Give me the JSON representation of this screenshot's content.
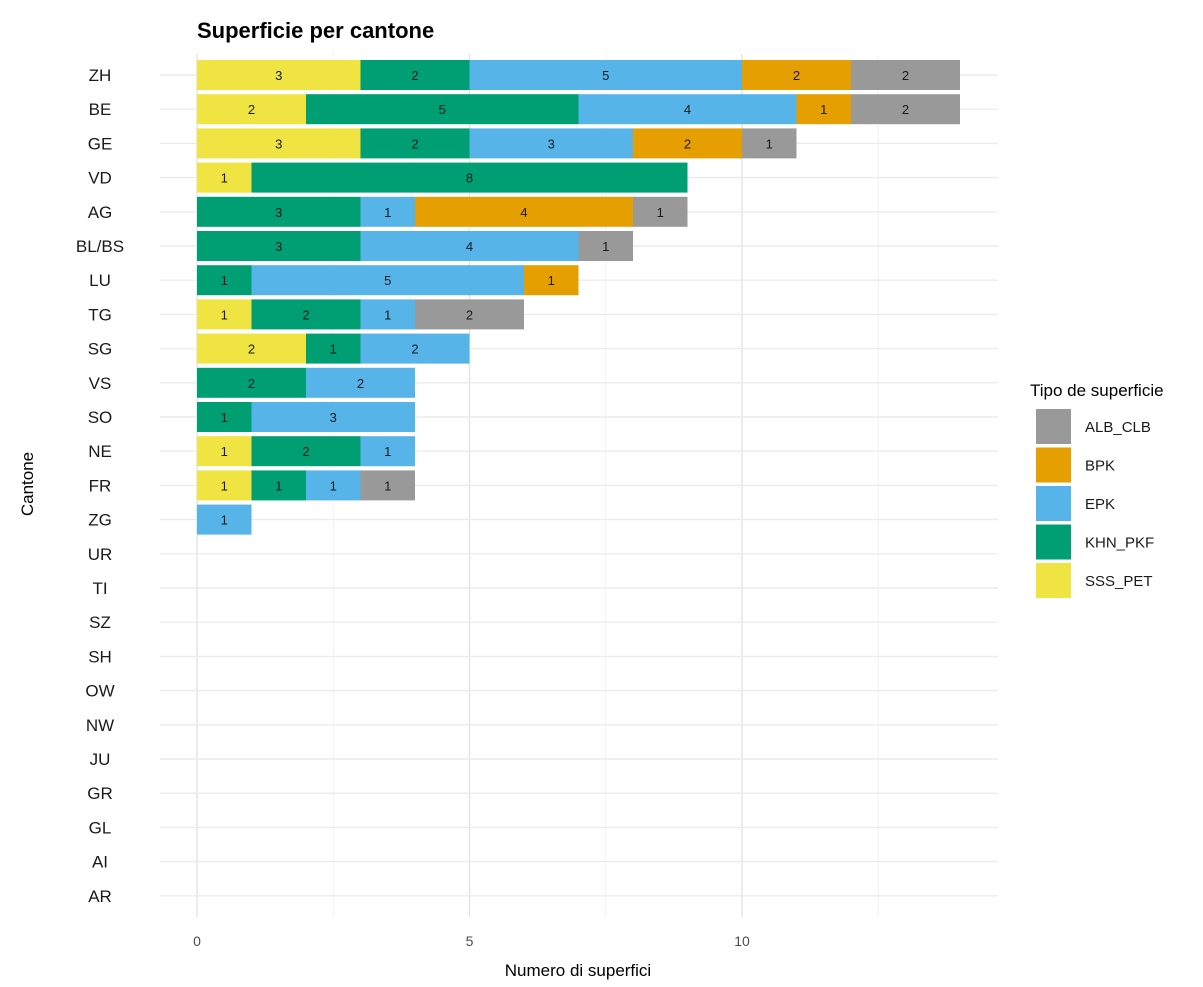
{
  "chart_data": {
    "type": "bar",
    "orientation": "horizontal",
    "stacked": true,
    "title": "Superficie per cantone",
    "xlabel": "Numero di superfici",
    "ylabel": "Cantone",
    "xlim": [
      0,
      14.7
    ],
    "x_ticks": [
      0,
      5,
      10
    ],
    "grid": true,
    "legend": {
      "title": "Tipo de superficie",
      "placement": "right",
      "entries": [
        "ALB_CLB",
        "BPK",
        "EPK",
        "KHN_PKF",
        "SSS_PET"
      ]
    },
    "categories": [
      "ZH",
      "BE",
      "GE",
      "VD",
      "AG",
      "BL/BS",
      "LU",
      "TG",
      "SG",
      "VS",
      "SO",
      "NE",
      "FR",
      "ZG",
      "UR",
      "TI",
      "SZ",
      "SH",
      "OW",
      "NW",
      "JU",
      "GR",
      "GL",
      "AI",
      "AR"
    ],
    "stack_order": [
      "SSS_PET",
      "KHN_PKF",
      "EPK",
      "BPK",
      "ALB_CLB"
    ],
    "series": [
      {
        "name": "SSS_PET",
        "color": "#F0E442",
        "values": [
          3,
          2,
          3,
          1,
          0,
          0,
          0,
          1,
          2,
          0,
          0,
          1,
          1,
          0,
          0,
          0,
          0,
          0,
          0,
          0,
          0,
          0,
          0,
          0,
          0
        ]
      },
      {
        "name": "KHN_PKF",
        "color": "#009E73",
        "values": [
          2,
          5,
          2,
          8,
          3,
          3,
          1,
          2,
          1,
          2,
          1,
          2,
          1,
          0,
          0,
          0,
          0,
          0,
          0,
          0,
          0,
          0,
          0,
          0,
          0
        ]
      },
      {
        "name": "EPK",
        "color": "#56B4E9",
        "values": [
          5,
          4,
          3,
          0,
          1,
          4,
          5,
          1,
          2,
          2,
          3,
          1,
          1,
          1,
          0,
          0,
          0,
          0,
          0,
          0,
          0,
          0,
          0,
          0,
          0
        ]
      },
      {
        "name": "BPK",
        "color": "#E69F00",
        "values": [
          2,
          1,
          2,
          0,
          4,
          0,
          1,
          0,
          0,
          0,
          0,
          0,
          0,
          0,
          0,
          0,
          0,
          0,
          0,
          0,
          0,
          0,
          0,
          0,
          0
        ]
      },
      {
        "name": "ALB_CLB",
        "color": "#999999",
        "values": [
          2,
          2,
          1,
          0,
          1,
          1,
          0,
          2,
          0,
          0,
          0,
          0,
          1,
          0,
          0,
          0,
          0,
          0,
          0,
          0,
          0,
          0,
          0,
          0,
          0
        ]
      }
    ]
  }
}
